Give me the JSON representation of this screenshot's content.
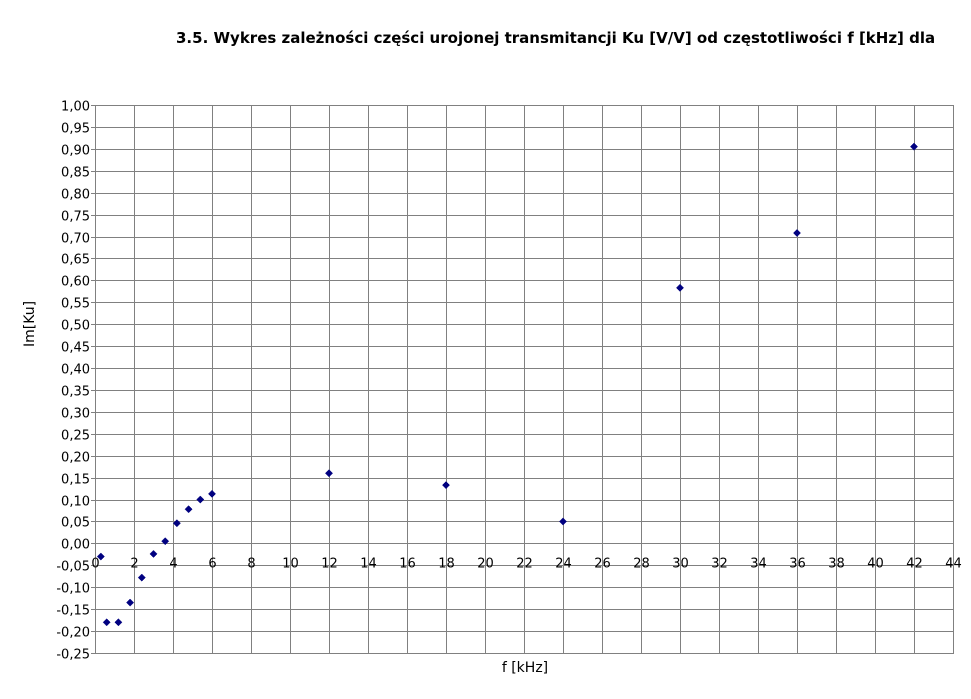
{
  "chart_data": {
    "type": "scatter",
    "title": "3.5. Wykres zależności części urojonej transmitancji Ku [V/V] od częstotliwości f [kHz] dla",
    "xlabel": "f [kHz]",
    "ylabel": "Im[Ku]",
    "xlim": [
      0,
      44
    ],
    "ylim": [
      -0.25,
      1.0
    ],
    "x_ticks": [
      0,
      2,
      4,
      6,
      8,
      10,
      12,
      14,
      16,
      18,
      20,
      22,
      24,
      26,
      28,
      30,
      32,
      34,
      36,
      38,
      40,
      42,
      44
    ],
    "x_tick_labels": [
      "0",
      "2",
      "4",
      "6",
      "8",
      "10",
      "12",
      "14",
      "16",
      "18",
      "20",
      "22",
      "24",
      "26",
      "28",
      "30",
      "32",
      "34",
      "36",
      "38",
      "40",
      "42",
      "44"
    ],
    "y_ticks": [
      1.0,
      0.95,
      0.9,
      0.85,
      0.8,
      0.75,
      0.7,
      0.65,
      0.6,
      0.55,
      0.5,
      0.45,
      0.4,
      0.35,
      0.3,
      0.25,
      0.2,
      0.15,
      0.1,
      0.05,
      0.0,
      -0.05,
      -0.1,
      -0.15,
      -0.2,
      -0.25
    ],
    "y_tick_labels": [
      "1,00",
      "0,95",
      "0,90",
      "0,85",
      "0,80",
      "0,75",
      "0,70",
      "0,65",
      "0,60",
      "0,55",
      "0,50",
      "0,45",
      "0,40",
      "0,35",
      "0,30",
      "0,25",
      "0,20",
      "0,15",
      "0,10",
      "0,05",
      "0,00",
      "-0,05",
      "-0,10",
      "-0,15",
      "-0,20",
      "-0,25"
    ],
    "grid": true,
    "legend": "none",
    "series": [
      {
        "marker_color": "#000080",
        "marker": "diamond",
        "points": [
          {
            "x": 0.3,
            "y": -0.03
          },
          {
            "x": 0.6,
            "y": -0.18
          },
          {
            "x": 1.2,
            "y": -0.18
          },
          {
            "x": 1.8,
            "y": -0.135
          },
          {
            "x": 2.4,
            "y": -0.078
          },
          {
            "x": 3.0,
            "y": -0.024
          },
          {
            "x": 3.6,
            "y": 0.005
          },
          {
            "x": 4.2,
            "y": 0.046
          },
          {
            "x": 4.8,
            "y": 0.078
          },
          {
            "x": 5.4,
            "y": 0.1
          },
          {
            "x": 6.0,
            "y": 0.113
          },
          {
            "x": 12.0,
            "y": 0.16
          },
          {
            "x": 18.0,
            "y": 0.133
          },
          {
            "x": 24.0,
            "y": 0.05
          },
          {
            "x": 30.0,
            "y": 0.583
          },
          {
            "x": 36.0,
            "y": 0.708
          },
          {
            "x": 42.0,
            "y": 0.905
          }
        ]
      }
    ]
  }
}
